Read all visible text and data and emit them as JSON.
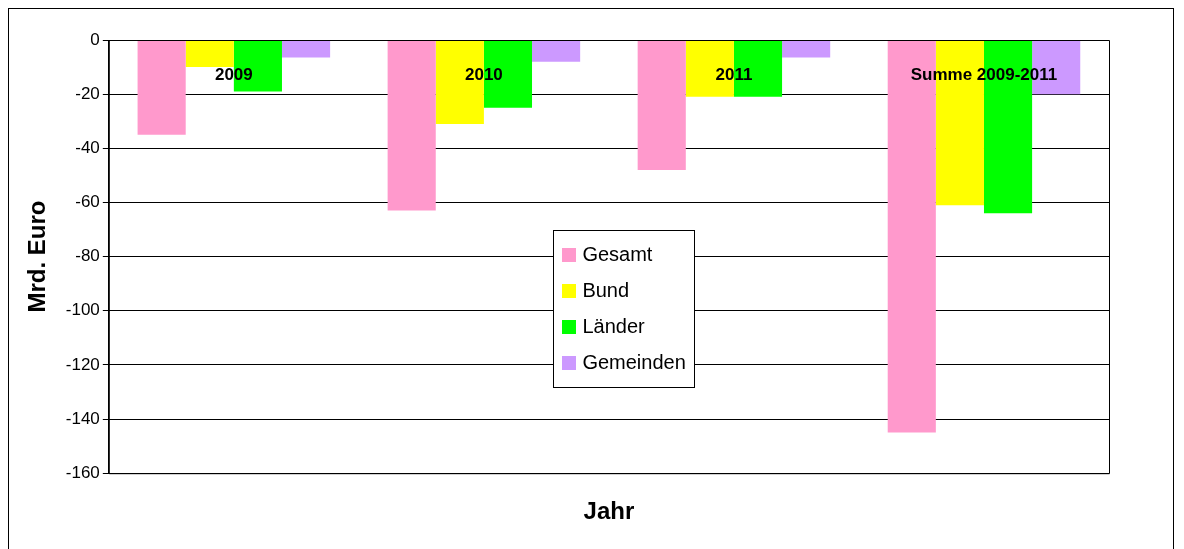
{
  "chart_data": {
    "type": "bar",
    "xlabel": "Jahr",
    "ylabel": "Mrd. Euro",
    "categories": [
      "2009",
      "2010",
      "2011",
      "Summe 2009-2011"
    ],
    "series": [
      {
        "name": "Gesamt",
        "color": "#ff99cc",
        "values": [
          -35,
          -63,
          -48,
          -145
        ]
      },
      {
        "name": "Bund",
        "color": "#ffff00",
        "values": [
          -10,
          -31,
          -21,
          -61
        ]
      },
      {
        "name": "Länder",
        "color": "#00ff00",
        "values": [
          -19,
          -25,
          -21,
          -64
        ]
      },
      {
        "name": "Gemeinden",
        "color": "#cc99ff",
        "values": [
          -6.5,
          -8,
          -6.5,
          -20
        ]
      }
    ],
    "ylim": [
      -160,
      0
    ],
    "yticks": [
      0,
      -20,
      -40,
      -60,
      -80,
      -100,
      -120,
      -140,
      -160
    ],
    "grid": "y",
    "legend": "center"
  }
}
